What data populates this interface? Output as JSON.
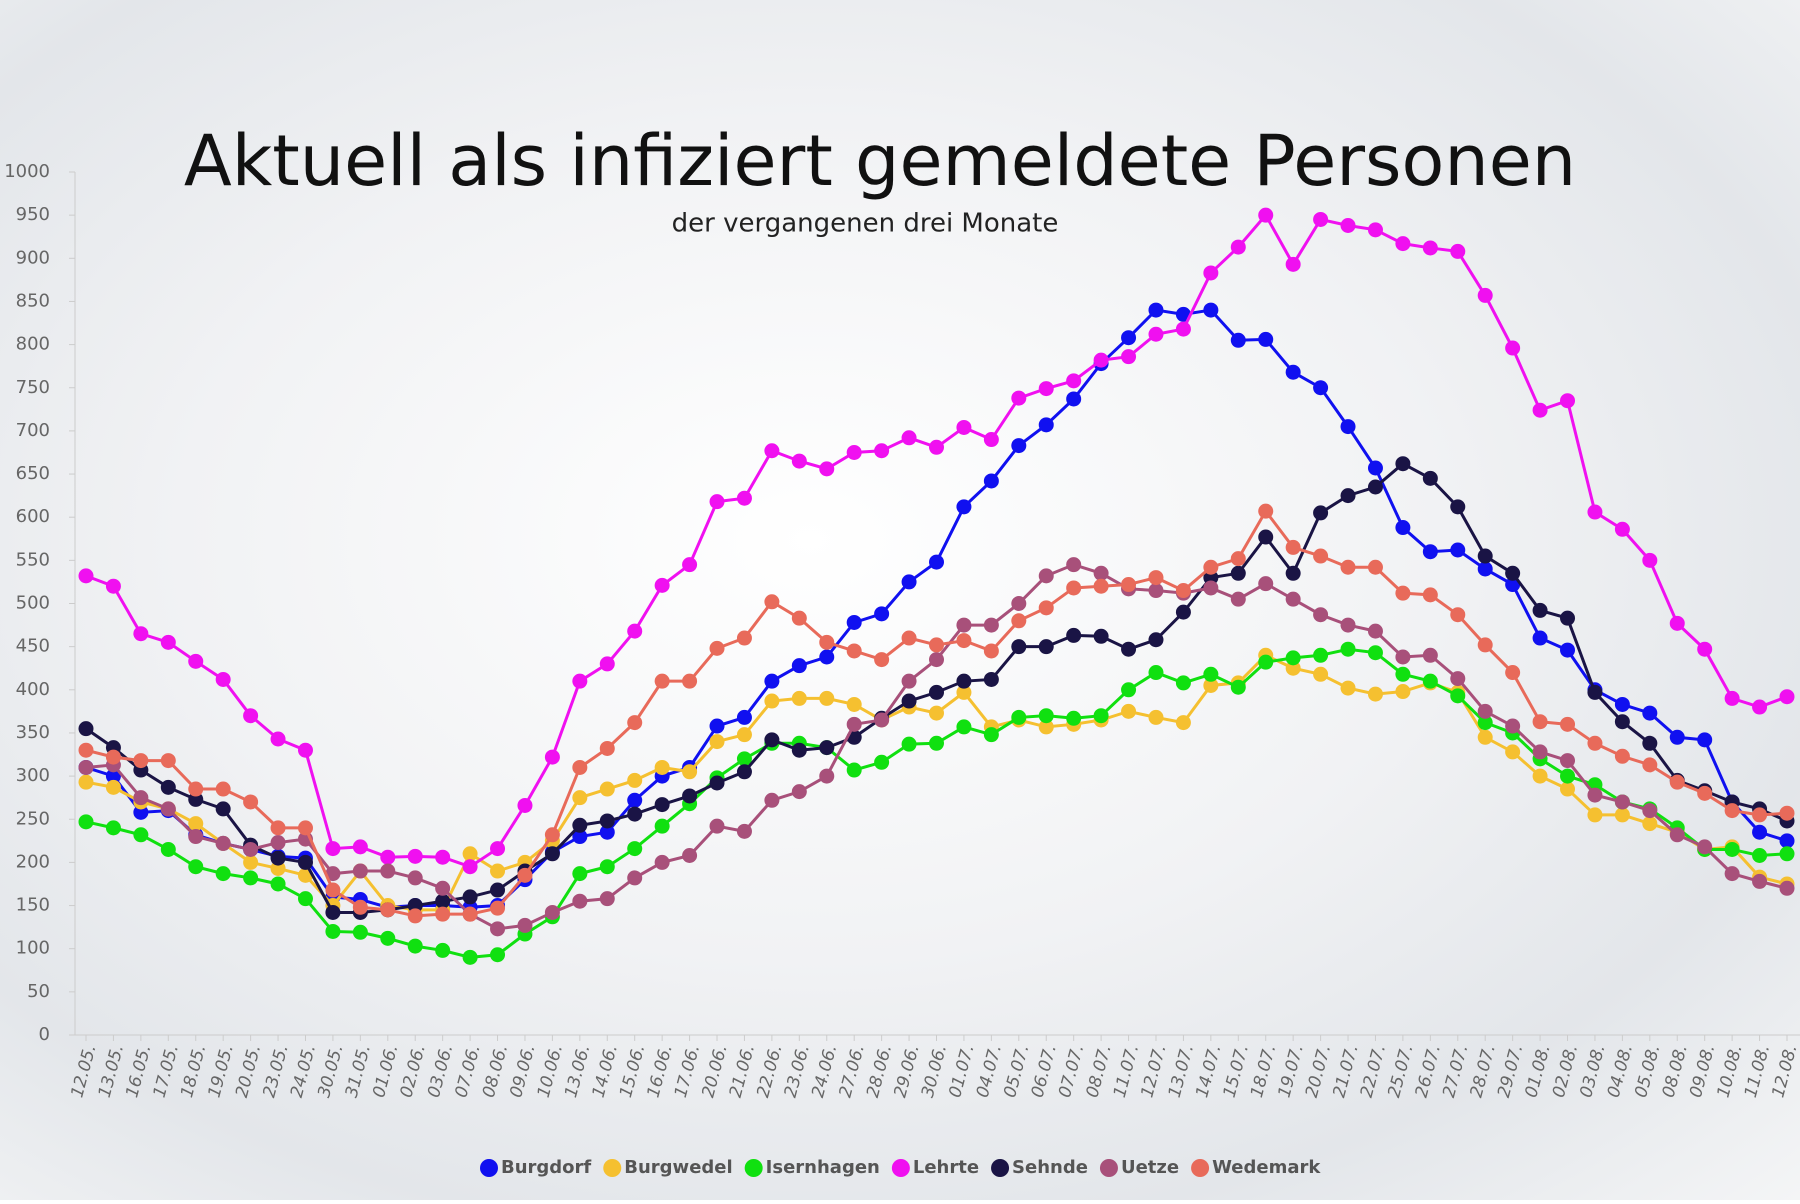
{
  "chart_data": {
    "type": "line",
    "title": "Aktuell als infiziert gemeldete Personen",
    "subtitle": "der vergangenen drei Monate",
    "categories": [
      "12.05.",
      "13.05.",
      "16.05.",
      "17.05.",
      "18.05.",
      "19.05.",
      "20.05.",
      "23.05.",
      "24.05.",
      "30.05.",
      "31.05.",
      "01.06.",
      "02.06.",
      "03.06.",
      "07.06.",
      "08.06.",
      "09.06.",
      "10.06.",
      "13.06.",
      "14.06.",
      "15.06.",
      "16.06.",
      "17.06.",
      "20.06.",
      "21.06.",
      "22.06.",
      "23.06.",
      "24.06.",
      "27.06.",
      "28.06.",
      "29.06.",
      "30.06.",
      "01.07.",
      "04.07.",
      "05.07.",
      "06.07.",
      "07.07.",
      "08.07.",
      "11.07.",
      "12.07.",
      "13.07.",
      "14.07.",
      "15.07.",
      "18.07.",
      "19.07.",
      "20.07.",
      "21.07.",
      "22.07.",
      "25.07.",
      "26.07.",
      "27.07.",
      "28.07.",
      "29.07.",
      "01.08.",
      "02.08.",
      "03.08.",
      "04.08.",
      "05.08.",
      "08.08.",
      "09.08.",
      "10.08.",
      "11.08.",
      "12.08."
    ],
    "series": [
      {
        "name": "Burgdorf",
        "color": "#1010f0",
        "values": [
          310,
          300,
          258,
          260,
          232,
          222,
          215,
          207,
          205,
          160,
          157,
          148,
          150,
          150,
          148,
          150,
          180,
          212,
          230,
          235,
          272,
          300,
          310,
          358,
          368,
          410,
          428,
          438,
          478,
          488,
          525,
          548,
          612,
          642,
          683,
          707,
          737,
          778,
          808,
          840,
          835,
          840,
          805,
          806,
          768,
          750,
          705,
          657,
          588,
          560,
          562,
          540,
          522,
          460,
          446,
          400,
          383,
          373,
          345,
          342,
          270,
          235,
          225
        ]
      },
      {
        "name": "Burgwedel",
        "color": "#f5c030",
        "values": [
          293,
          287,
          270,
          262,
          245,
          222,
          200,
          193,
          185,
          150,
          190,
          150,
          145,
          145,
          210,
          190,
          200,
          225,
          275,
          285,
          295,
          310,
          305,
          340,
          348,
          387,
          390,
          390,
          383,
          365,
          380,
          373,
          397,
          357,
          365,
          357,
          360,
          365,
          375,
          368,
          362,
          405,
          408,
          440,
          425,
          418,
          402,
          395,
          398,
          408,
          397,
          345,
          328,
          300,
          285,
          255,
          255,
          245,
          235,
          215,
          218,
          183,
          175
        ]
      },
      {
        "name": "Isernhagen",
        "color": "#10e010",
        "values": [
          247,
          240,
          232,
          215,
          195,
          187,
          182,
          175,
          158,
          120,
          119,
          112,
          103,
          98,
          90,
          93,
          117,
          137,
          187,
          195,
          216,
          242,
          268,
          298,
          320,
          338,
          338,
          333,
          307,
          316,
          337,
          338,
          357,
          348,
          368,
          370,
          367,
          370,
          400,
          420,
          408,
          418,
          403,
          432,
          437,
          440,
          447,
          443,
          418,
          410,
          393,
          362,
          350,
          320,
          300,
          290,
          270,
          262,
          240,
          215,
          215,
          208,
          210
        ]
      },
      {
        "name": "Lehrte",
        "color": "#f010f0",
        "values": [
          532,
          520,
          465,
          455,
          433,
          412,
          370,
          343,
          330,
          216,
          218,
          206,
          207,
          206,
          195,
          216,
          266,
          322,
          410,
          430,
          468,
          521,
          545,
          618,
          622,
          677,
          665,
          656,
          675,
          677,
          692,
          681,
          704,
          690,
          738,
          749,
          758,
          782,
          786,
          812,
          818,
          883,
          913,
          950,
          893,
          945,
          938,
          933,
          917,
          912,
          908,
          857,
          796,
          724,
          735,
          606,
          586,
          550,
          477,
          447,
          390,
          380,
          392
        ]
      },
      {
        "name": "Sehnde",
        "color": "#1a1445",
        "values": [
          355,
          333,
          307,
          287,
          273,
          262,
          220,
          205,
          200,
          142,
          142,
          145,
          150,
          155,
          160,
          168,
          190,
          210,
          243,
          248,
          256,
          267,
          277,
          292,
          305,
          342,
          330,
          333,
          345,
          367,
          387,
          397,
          410,
          412,
          450,
          450,
          463,
          462,
          447,
          458,
          490,
          530,
          535,
          577,
          535,
          605,
          625,
          635,
          662,
          645,
          612,
          555,
          535,
          492,
          483,
          397,
          363,
          338,
          295,
          283,
          270,
          262,
          248
        ]
      },
      {
        "name": "Uetze",
        "color": "#a8507a",
        "values": [
          310,
          313,
          275,
          262,
          230,
          222,
          215,
          223,
          227,
          187,
          190,
          190,
          182,
          170,
          140,
          123,
          127,
          142,
          155,
          158,
          182,
          200,
          208,
          242,
          236,
          272,
          282,
          300,
          360,
          365,
          410,
          435,
          475,
          475,
          500,
          532,
          545,
          535,
          517,
          515,
          512,
          518,
          505,
          523,
          505,
          487,
          475,
          468,
          438,
          440,
          413,
          375,
          358,
          328,
          318,
          278,
          270,
          260,
          232,
          218,
          187,
          178,
          170
        ]
      },
      {
        "name": "Wedemark",
        "color": "#e86a5a",
        "values": [
          330,
          322,
          318,
          318,
          285,
          285,
          270,
          240,
          240,
          168,
          148,
          145,
          138,
          140,
          140,
          147,
          185,
          232,
          310,
          332,
          362,
          410,
          410,
          448,
          460,
          502,
          483,
          455,
          445,
          435,
          460,
          452,
          457,
          445,
          480,
          495,
          518,
          520,
          522,
          530,
          515,
          542,
          552,
          607,
          565,
          555,
          542,
          542,
          512,
          510,
          487,
          452,
          420,
          363,
          360,
          338,
          323,
          313,
          293,
          280,
          260,
          255,
          257
        ]
      }
    ],
    "ylim": [
      0,
      1000
    ],
    "yticks": [
      0,
      50,
      100,
      150,
      200,
      250,
      300,
      350,
      400,
      450,
      500,
      550,
      600,
      650,
      700,
      750,
      800,
      850,
      900,
      950,
      1000
    ],
    "legend": "bottom"
  }
}
